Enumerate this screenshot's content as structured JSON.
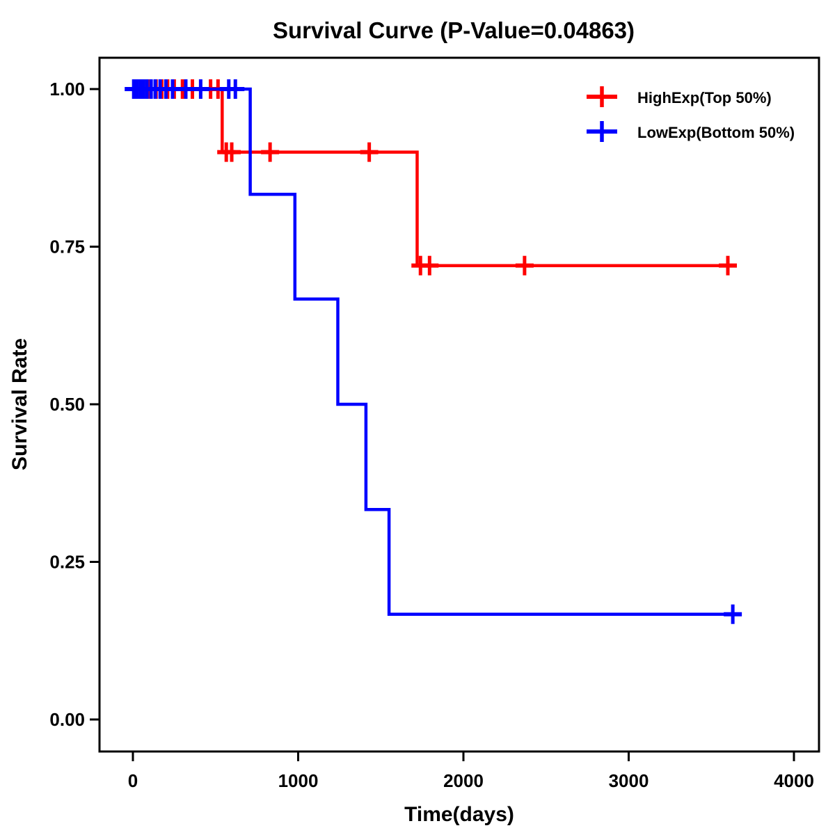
{
  "figure": {
    "title": "Survival Curve (P-Value=0.04863)"
  },
  "chart_data": {
    "type": "line",
    "variant": "kaplan_meier_step",
    "title": "Survival Curve (P-Value=0.04863)",
    "xlabel": "Time(days)",
    "ylabel": "Survival Rate",
    "x_ticks": [
      0,
      1000,
      2000,
      3000,
      4000
    ],
    "y_ticks": [
      {
        "value": 0.0,
        "label": "0.00"
      },
      {
        "value": 0.25,
        "label": "0.25"
      },
      {
        "value": 0.5,
        "label": "0.50"
      },
      {
        "value": 0.75,
        "label": "0.75"
      },
      {
        "value": 1.0,
        "label": "1.00"
      }
    ],
    "xlim": [
      0,
      4000
    ],
    "ylim": [
      0,
      1
    ],
    "grid": false,
    "background_color": "#FFFFFF",
    "border_color": "#000000",
    "legend_position": "top-right",
    "series": [
      {
        "name": "HighExp(Top 50%)",
        "color": "#FF0000",
        "steps": [
          [
            0,
            1.0
          ],
          [
            540,
            1.0
          ],
          [
            540,
            0.9
          ],
          [
            1720,
            0.9
          ],
          [
            1720,
            0.72
          ],
          [
            3650,
            0.72
          ]
        ],
        "censor_marks": [
          [
            60,
            1.0
          ],
          [
            90,
            1.0
          ],
          [
            140,
            1.0
          ],
          [
            175,
            1.0
          ],
          [
            210,
            1.0
          ],
          [
            250,
            1.0
          ],
          [
            300,
            1.0
          ],
          [
            360,
            1.0
          ],
          [
            470,
            1.0
          ],
          [
            515,
            1.0
          ],
          [
            565,
            0.9
          ],
          [
            598,
            0.9
          ],
          [
            830,
            0.9
          ],
          [
            1430,
            0.9
          ],
          [
            1740,
            0.72
          ],
          [
            1795,
            0.72
          ],
          [
            2370,
            0.72
          ],
          [
            3600,
            0.72
          ]
        ]
      },
      {
        "name": "LowExp(Bottom 50%)",
        "color": "#0000FF",
        "steps": [
          [
            0,
            1.0
          ],
          [
            710,
            1.0
          ],
          [
            710,
            0.833
          ],
          [
            980,
            0.833
          ],
          [
            980,
            0.667
          ],
          [
            1240,
            0.667
          ],
          [
            1240,
            0.5
          ],
          [
            1410,
            0.5
          ],
          [
            1410,
            0.333
          ],
          [
            1550,
            0.333
          ],
          [
            1550,
            0.167
          ],
          [
            3650,
            0.167
          ]
        ],
        "censor_marks": [
          [
            5,
            1.0
          ],
          [
            25,
            1.0
          ],
          [
            45,
            1.0
          ],
          [
            65,
            1.0
          ],
          [
            85,
            1.0
          ],
          [
            110,
            1.0
          ],
          [
            135,
            1.0
          ],
          [
            165,
            1.0
          ],
          [
            200,
            1.0
          ],
          [
            240,
            1.0
          ],
          [
            320,
            1.0
          ],
          [
            410,
            1.0
          ],
          [
            580,
            1.0
          ],
          [
            620,
            1.0
          ],
          [
            3630,
            0.167
          ]
        ]
      }
    ]
  }
}
